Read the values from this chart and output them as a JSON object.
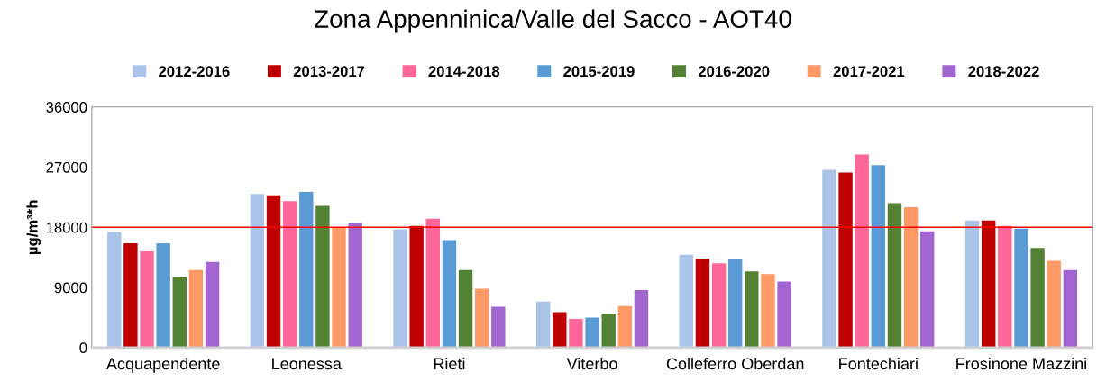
{
  "chart_data": {
    "type": "bar",
    "title": "Zona Appenninica/Valle del Sacco - AOT40",
    "ylabel": "µg/m³*h",
    "categories": [
      "Acquapendente",
      "Leonessa",
      "Rieti",
      "Viterbo",
      "Colleferro Oberdan",
      "Fontechiari",
      "Frosinone Mazzini"
    ],
    "series": [
      {
        "name": "2012-2016",
        "color": "#a9c4e8",
        "values": [
          17300,
          23000,
          17700,
          6900,
          13900,
          26600,
          19000
        ]
      },
      {
        "name": "2013-2017",
        "color": "#c00000",
        "values": [
          15600,
          22800,
          18200,
          5300,
          13300,
          26200,
          19000
        ]
      },
      {
        "name": "2014-2018",
        "color": "#ff6699",
        "values": [
          14400,
          21900,
          19300,
          4300,
          12600,
          28900,
          18200
        ]
      },
      {
        "name": "2015-2019",
        "color": "#5b9bd5",
        "values": [
          15600,
          23300,
          16100,
          4500,
          13200,
          27300,
          17800
        ]
      },
      {
        "name": "2016-2020",
        "color": "#548235",
        "values": [
          10600,
          21200,
          11600,
          5100,
          11400,
          21600,
          14900
        ]
      },
      {
        "name": "2017-2021",
        "color": "#ff9966",
        "values": [
          11600,
          17900,
          8800,
          6200,
          11000,
          21000,
          13000
        ]
      },
      {
        "name": "2018-2022",
        "color": "#a366d1",
        "values": [
          12800,
          18600,
          6100,
          8600,
          9900,
          17400,
          11600
        ]
      }
    ],
    "ylim": [
      0,
      36000
    ],
    "yticks": [
      0,
      9000,
      18000,
      27000,
      36000
    ],
    "ref_lines": [
      {
        "axis": "y",
        "value": 18000,
        "color": "#ff0000"
      }
    ],
    "grid": false,
    "legend": "top"
  }
}
